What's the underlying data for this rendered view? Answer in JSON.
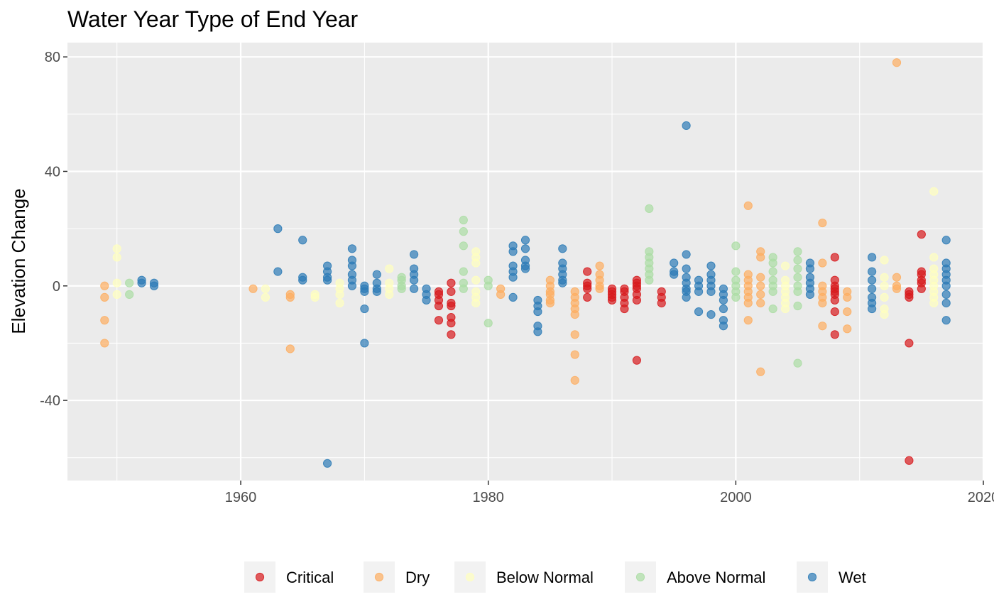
{
  "chart_data": {
    "type": "scatter",
    "title": "Water Year Type of End Year",
    "xlabel": "",
    "ylabel": "Elevation Change",
    "xlim": [
      1946,
      2020
    ],
    "ylim": [
      -68,
      85
    ],
    "x_ticks": [
      1960,
      1980,
      2000,
      2020
    ],
    "x_tick_labels": [
      "1960",
      "1980",
      "2000",
      "2020"
    ],
    "y_ticks": [
      -40,
      0,
      40,
      80
    ],
    "y_tick_labels": [
      "-40",
      "0",
      "40",
      "80"
    ],
    "grid": true,
    "legend_position": "bottom",
    "series": [
      {
        "name": "Critical",
        "color": "#d7191c",
        "points": [
          [
            1976,
            -12
          ],
          [
            1976,
            -7
          ],
          [
            1976,
            -5
          ],
          [
            1976,
            -3
          ],
          [
            1976,
            -2
          ],
          [
            1977,
            -17
          ],
          [
            1977,
            -13
          ],
          [
            1977,
            -11
          ],
          [
            1977,
            -7
          ],
          [
            1977,
            -6
          ],
          [
            1977,
            -2
          ],
          [
            1977,
            1
          ],
          [
            1988,
            5
          ],
          [
            1988,
            1
          ],
          [
            1988,
            0
          ],
          [
            1988,
            -1
          ],
          [
            1988,
            -4
          ],
          [
            1990,
            -1
          ],
          [
            1990,
            -2
          ],
          [
            1990,
            -3
          ],
          [
            1990,
            -4
          ],
          [
            1990,
            -5
          ],
          [
            1991,
            -8
          ],
          [
            1991,
            -6
          ],
          [
            1991,
            -4
          ],
          [
            1991,
            -2
          ],
          [
            1991,
            -1
          ],
          [
            1992,
            -26
          ],
          [
            1992,
            2
          ],
          [
            1992,
            1
          ],
          [
            1992,
            0
          ],
          [
            1992,
            -1
          ],
          [
            1992,
            -3
          ],
          [
            1992,
            -5
          ],
          [
            1994,
            -2
          ],
          [
            1994,
            -4
          ],
          [
            1994,
            -6
          ],
          [
            2008,
            10
          ],
          [
            2008,
            2
          ],
          [
            2008,
            0
          ],
          [
            2008,
            -1
          ],
          [
            2008,
            -2
          ],
          [
            2008,
            -3
          ],
          [
            2008,
            -5
          ],
          [
            2008,
            -9
          ],
          [
            2008,
            -17
          ],
          [
            2014,
            -2
          ],
          [
            2014,
            -3
          ],
          [
            2014,
            -4
          ],
          [
            2014,
            -20
          ],
          [
            2014,
            -61
          ],
          [
            2015,
            18
          ],
          [
            2015,
            5
          ],
          [
            2015,
            4
          ],
          [
            2015,
            2
          ],
          [
            2015,
            1
          ],
          [
            2015,
            -1
          ]
        ]
      },
      {
        "name": "Dry",
        "color": "#fdae61",
        "points": [
          [
            1949,
            0
          ],
          [
            1949,
            -4
          ],
          [
            1949,
            -12
          ],
          [
            1949,
            -20
          ],
          [
            1961,
            -1
          ],
          [
            1964,
            -22
          ],
          [
            1964,
            -3
          ],
          [
            1964,
            -4
          ],
          [
            1981,
            -1
          ],
          [
            1981,
            -3
          ],
          [
            1985,
            2
          ],
          [
            1985,
            0
          ],
          [
            1985,
            -2
          ],
          [
            1985,
            -3
          ],
          [
            1985,
            -5
          ],
          [
            1985,
            -6
          ],
          [
            1987,
            -33
          ],
          [
            1987,
            -24
          ],
          [
            1987,
            -17
          ],
          [
            1987,
            -10
          ],
          [
            1987,
            -8
          ],
          [
            1987,
            -6
          ],
          [
            1987,
            -4
          ],
          [
            1987,
            -2
          ],
          [
            1989,
            7
          ],
          [
            1989,
            4
          ],
          [
            1989,
            2
          ],
          [
            1989,
            0
          ],
          [
            1989,
            -1
          ],
          [
            2001,
            28
          ],
          [
            2001,
            4
          ],
          [
            2001,
            2
          ],
          [
            2001,
            0
          ],
          [
            2001,
            -2
          ],
          [
            2001,
            -4
          ],
          [
            2001,
            -6
          ],
          [
            2001,
            -12
          ],
          [
            2002,
            12
          ],
          [
            2002,
            10
          ],
          [
            2002,
            3
          ],
          [
            2002,
            0
          ],
          [
            2002,
            -3
          ],
          [
            2002,
            -6
          ],
          [
            2002,
            -30
          ],
          [
            2007,
            22
          ],
          [
            2007,
            8
          ],
          [
            2007,
            0
          ],
          [
            2007,
            -2
          ],
          [
            2007,
            -4
          ],
          [
            2007,
            -6
          ],
          [
            2007,
            -14
          ],
          [
            2009,
            -2
          ],
          [
            2009,
            -4
          ],
          [
            2009,
            -9
          ],
          [
            2009,
            -15
          ],
          [
            2013,
            78
          ],
          [
            2013,
            3
          ],
          [
            2013,
            0
          ],
          [
            2013,
            -1
          ]
        ]
      },
      {
        "name": "Below Normal",
        "color": "#ffffbf",
        "points": [
          [
            1950,
            13
          ],
          [
            1950,
            10
          ],
          [
            1950,
            1
          ],
          [
            1950,
            -3
          ],
          [
            1962,
            -1
          ],
          [
            1962,
            -4
          ],
          [
            1966,
            -3
          ],
          [
            1966,
            -4
          ],
          [
            1968,
            1
          ],
          [
            1968,
            -1
          ],
          [
            1968,
            -3
          ],
          [
            1968,
            -6
          ],
          [
            1972,
            6
          ],
          [
            1972,
            1
          ],
          [
            1972,
            -1
          ],
          [
            1972,
            -3
          ],
          [
            1979,
            12
          ],
          [
            1979,
            10
          ],
          [
            1979,
            8
          ],
          [
            1979,
            2
          ],
          [
            1979,
            -2
          ],
          [
            1979,
            -4
          ],
          [
            1979,
            -6
          ],
          [
            2004,
            7
          ],
          [
            2004,
            2
          ],
          [
            2004,
            0
          ],
          [
            2004,
            -2
          ],
          [
            2004,
            -4
          ],
          [
            2004,
            -6
          ],
          [
            2004,
            -8
          ],
          [
            2012,
            9
          ],
          [
            2012,
            3
          ],
          [
            2012,
            0
          ],
          [
            2012,
            -4
          ],
          [
            2012,
            -8
          ],
          [
            2012,
            -10
          ],
          [
            2016,
            33
          ],
          [
            2016,
            10
          ],
          [
            2016,
            6
          ],
          [
            2016,
            4
          ],
          [
            2016,
            2
          ],
          [
            2016,
            0
          ],
          [
            2016,
            -2
          ],
          [
            2016,
            -4
          ],
          [
            2016,
            -6
          ]
        ]
      },
      {
        "name": "Above Normal",
        "color": "#abdda4",
        "points": [
          [
            1951,
            1
          ],
          [
            1951,
            -3
          ],
          [
            1973,
            3
          ],
          [
            1973,
            2
          ],
          [
            1973,
            0
          ],
          [
            1973,
            -1
          ],
          [
            1978,
            23
          ],
          [
            1978,
            19
          ],
          [
            1978,
            14
          ],
          [
            1978,
            5
          ],
          [
            1978,
            1
          ],
          [
            1978,
            -1
          ],
          [
            1980,
            2
          ],
          [
            1980,
            0
          ],
          [
            1980,
            -13
          ],
          [
            1993,
            27
          ],
          [
            1993,
            12
          ],
          [
            1993,
            10
          ],
          [
            1993,
            8
          ],
          [
            1993,
            6
          ],
          [
            1993,
            4
          ],
          [
            1993,
            2
          ],
          [
            2000,
            14
          ],
          [
            2000,
            5
          ],
          [
            2000,
            2
          ],
          [
            2000,
            0
          ],
          [
            2000,
            -2
          ],
          [
            2000,
            -4
          ],
          [
            2003,
            10
          ],
          [
            2003,
            8
          ],
          [
            2003,
            5
          ],
          [
            2003,
            2
          ],
          [
            2003,
            0
          ],
          [
            2003,
            -2
          ],
          [
            2003,
            -8
          ],
          [
            2005,
            12
          ],
          [
            2005,
            9
          ],
          [
            2005,
            6
          ],
          [
            2005,
            3
          ],
          [
            2005,
            0
          ],
          [
            2005,
            -2
          ],
          [
            2005,
            -7
          ],
          [
            2005,
            -27
          ]
        ]
      },
      {
        "name": "Wet",
        "color": "#2c7bb6",
        "points": [
          [
            1952,
            2
          ],
          [
            1952,
            1
          ],
          [
            1953,
            1
          ],
          [
            1953,
            0
          ],
          [
            1963,
            20
          ],
          [
            1963,
            5
          ],
          [
            1965,
            16
          ],
          [
            1965,
            3
          ],
          [
            1965,
            2
          ],
          [
            1967,
            7
          ],
          [
            1967,
            5
          ],
          [
            1967,
            3
          ],
          [
            1967,
            2
          ],
          [
            1967,
            -62
          ],
          [
            1969,
            13
          ],
          [
            1969,
            9
          ],
          [
            1969,
            7
          ],
          [
            1969,
            4
          ],
          [
            1969,
            2
          ],
          [
            1969,
            0
          ],
          [
            1970,
            0
          ],
          [
            1970,
            -1
          ],
          [
            1970,
            -2
          ],
          [
            1970,
            -8
          ],
          [
            1970,
            -20
          ],
          [
            1971,
            4
          ],
          [
            1971,
            1
          ],
          [
            1971,
            -1
          ],
          [
            1971,
            -2
          ],
          [
            1974,
            11
          ],
          [
            1974,
            6
          ],
          [
            1974,
            4
          ],
          [
            1974,
            2
          ],
          [
            1974,
            -1
          ],
          [
            1975,
            -1
          ],
          [
            1975,
            -3
          ],
          [
            1975,
            -5
          ],
          [
            1982,
            14
          ],
          [
            1982,
            12
          ],
          [
            1982,
            7
          ],
          [
            1982,
            5
          ],
          [
            1982,
            3
          ],
          [
            1982,
            -4
          ],
          [
            1983,
            16
          ],
          [
            1983,
            13
          ],
          [
            1983,
            9
          ],
          [
            1983,
            7
          ],
          [
            1983,
            6
          ],
          [
            1984,
            -5
          ],
          [
            1984,
            -7
          ],
          [
            1984,
            -9
          ],
          [
            1984,
            -14
          ],
          [
            1984,
            -16
          ],
          [
            1986,
            13
          ],
          [
            1986,
            8
          ],
          [
            1986,
            6
          ],
          [
            1986,
            4
          ],
          [
            1986,
            2
          ],
          [
            1986,
            1
          ],
          [
            1995,
            8
          ],
          [
            1995,
            5
          ],
          [
            1995,
            4
          ],
          [
            1996,
            56
          ],
          [
            1996,
            11
          ],
          [
            1996,
            6
          ],
          [
            1996,
            3
          ],
          [
            1996,
            1
          ],
          [
            1996,
            -1
          ],
          [
            1996,
            -2
          ],
          [
            1996,
            -4
          ],
          [
            1997,
            2
          ],
          [
            1997,
            0
          ],
          [
            1997,
            -2
          ],
          [
            1997,
            -9
          ],
          [
            1998,
            7
          ],
          [
            1998,
            4
          ],
          [
            1998,
            2
          ],
          [
            1998,
            0
          ],
          [
            1998,
            -2
          ],
          [
            1998,
            -10
          ],
          [
            1999,
            -1
          ],
          [
            1999,
            -3
          ],
          [
            1999,
            -5
          ],
          [
            1999,
            -8
          ],
          [
            1999,
            -12
          ],
          [
            1999,
            -14
          ],
          [
            2006,
            8
          ],
          [
            2006,
            6
          ],
          [
            2006,
            3
          ],
          [
            2006,
            1
          ],
          [
            2006,
            -1
          ],
          [
            2006,
            -3
          ],
          [
            2011,
            10
          ],
          [
            2011,
            5
          ],
          [
            2011,
            2
          ],
          [
            2011,
            -1
          ],
          [
            2011,
            -4
          ],
          [
            2011,
            -6
          ],
          [
            2011,
            -8
          ],
          [
            2017,
            16
          ],
          [
            2017,
            8
          ],
          [
            2017,
            6
          ],
          [
            2017,
            4
          ],
          [
            2017,
            2
          ],
          [
            2017,
            0
          ],
          [
            2017,
            -3
          ],
          [
            2017,
            -6
          ],
          [
            2017,
            -12
          ]
        ]
      }
    ]
  }
}
